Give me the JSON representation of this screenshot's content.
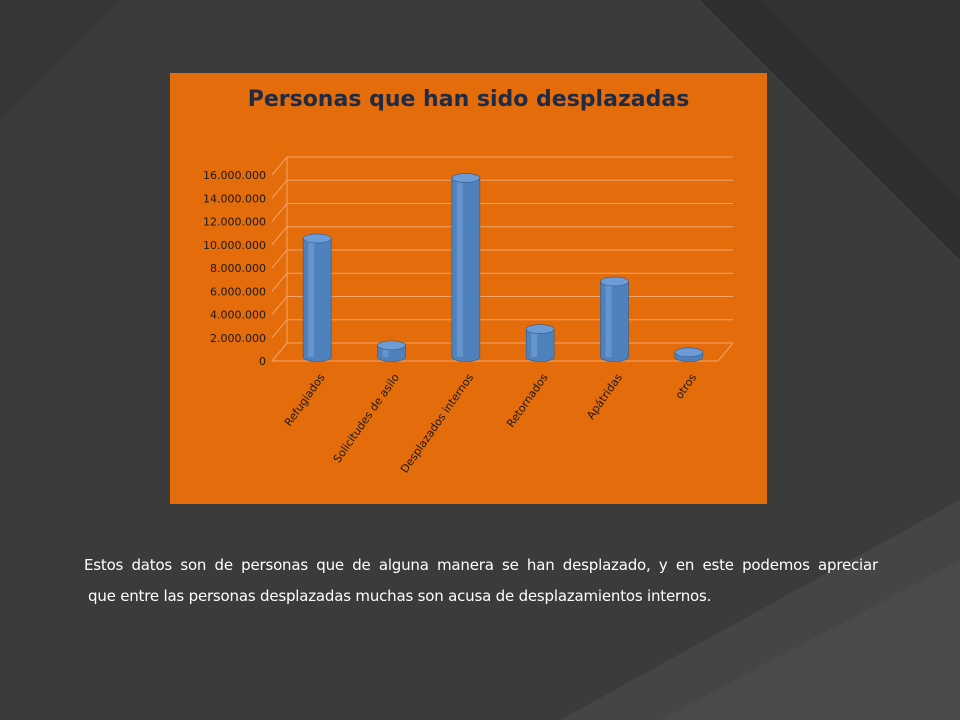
{
  "slide": {
    "caption_line1": "Estos datos son de personas que de alguna manera se han desplazado, y en este podemos apreciar",
    "caption_line2": "que entre las personas desplazadas muchas son acusa de desplazamientos internos.",
    "colors": {
      "background": "#3a3a3a",
      "chart_background": "#e46c0a",
      "bar": "#4f81bd",
      "title": "#1f2a44"
    }
  },
  "chart_data": {
    "type": "bar",
    "title": "Personas que han sido desplazadas",
    "xlabel": "",
    "ylabel": "",
    "categories": [
      "Refugiados",
      "Solicitudes de asilo",
      "Desplazados internos",
      "Retornados",
      "Apátridas",
      "otros"
    ],
    "values": [
      10200000,
      1000000,
      15400000,
      2400000,
      6500000,
      400000
    ],
    "ylim": [
      0,
      16000000
    ],
    "y_ticks": [
      "0",
      "2.000.000",
      "4.000.000",
      "6.000.000",
      "8.000.000",
      "10.000.000",
      "12.000.000",
      "14.000.000",
      "16.000.000"
    ],
    "grid": true,
    "legend": "none",
    "style": "3d-cylinder"
  }
}
